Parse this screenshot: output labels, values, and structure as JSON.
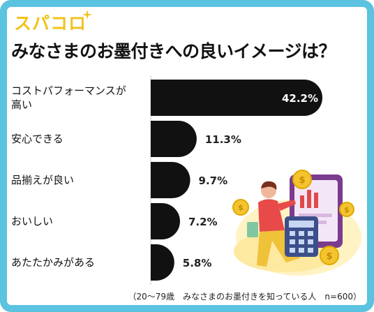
{
  "logo": {
    "text": "スパコロ"
  },
  "header": {
    "title": "みなさまのお墨付きへの良いイメージは？"
  },
  "footnote": "（20〜79歳　みなさまのお墨付きを知っている人　n=600）",
  "colors": {
    "frame": "#5bc3e0",
    "bar": "#111111",
    "logo": "#f2c21b"
  },
  "chart_data": {
    "type": "bar",
    "orientation": "horizontal",
    "categories": [
      "コストパフォーマンスが高い",
      "安心できる",
      "品揃えが良い",
      "おいしい",
      "あたたかみがある"
    ],
    "category_lines": [
      [
        "コストパフォーマンスが",
        "高い"
      ],
      [
        "安心できる"
      ],
      [
        "品揃えが良い"
      ],
      [
        "おいしい"
      ],
      [
        "あたたかみがある"
      ]
    ],
    "values": [
      42.2,
      11.3,
      9.7,
      7.2,
      5.8
    ],
    "value_labels": [
      "42.2%",
      "11.3%",
      "9.7%",
      "7.2%",
      "5.8%"
    ],
    "unit": "%",
    "title": "みなさまのお墨付きへの良いイメージは？"
  }
}
